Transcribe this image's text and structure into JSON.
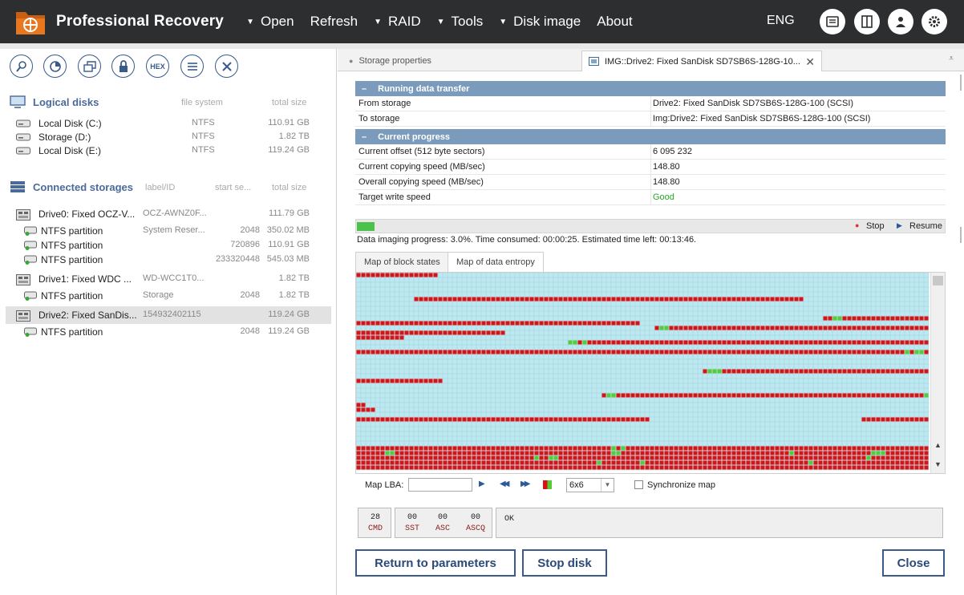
{
  "app": {
    "title": "Professional Recovery",
    "menu": [
      {
        "label": "Open",
        "caret": true
      },
      {
        "label": "Refresh",
        "caret": false
      },
      {
        "label": "RAID",
        "caret": true
      },
      {
        "label": "Tools",
        "caret": true
      },
      {
        "label": "Disk image",
        "caret": true
      },
      {
        "label": "About",
        "caret": false
      }
    ],
    "language": "ENG",
    "top_icons": [
      "messages-icon",
      "panel-toggle-icon",
      "user-icon",
      "settings-gear-icon"
    ]
  },
  "left": {
    "toolbar": [
      "find-icon",
      "scan-icon",
      "copy-icon",
      "lock-icon",
      "hex-icon",
      "list-icon",
      "close-icon"
    ],
    "hex_label": "HEX",
    "logical": {
      "title": "Logical disks",
      "col_fs": "file system",
      "col_size": "total size",
      "items": [
        {
          "name": "Local Disk (C:)",
          "fs": "NTFS",
          "size": "110.91 GB"
        },
        {
          "name": "Storage (D:)",
          "fs": "NTFS",
          "size": "1.82 TB"
        },
        {
          "name": "Local Disk (E:)",
          "fs": "NTFS",
          "size": "119.24 GB"
        }
      ]
    },
    "connected": {
      "title": "Connected storages",
      "col_label": "label/ID",
      "col_start": "start se...",
      "col_size": "total size",
      "items": [
        {
          "name": "Drive0: Fixed OCZ-V...",
          "label": "OCZ-AWNZ0F...",
          "start": "",
          "size": "111.79 GB",
          "level": 0
        },
        {
          "name": "NTFS partition",
          "label": "System Reser...",
          "start": "2048",
          "size": "350.02 MB",
          "level": 1
        },
        {
          "name": "NTFS partition",
          "label": "",
          "start": "720896",
          "size": "110.91 GB",
          "level": 1
        },
        {
          "name": "NTFS partition",
          "label": "",
          "start": "233320448",
          "size": "545.03 MB",
          "level": 1
        },
        {
          "name": "Drive1: Fixed WDC ...",
          "label": "WD-WCC1T0...",
          "start": "",
          "size": "1.82 TB",
          "level": 0
        },
        {
          "name": "NTFS partition",
          "label": "Storage",
          "start": "2048",
          "size": "1.82 TB",
          "level": 1
        },
        {
          "name": "Drive2: Fixed SanDis...",
          "label": "154932402115",
          "start": "",
          "size": "119.24 GB",
          "level": 0,
          "selected": true
        },
        {
          "name": "NTFS partition",
          "label": "",
          "start": "2048",
          "size": "119.24 GB",
          "level": 1
        }
      ]
    }
  },
  "right": {
    "tabs": [
      {
        "label": "Storage properties"
      },
      {
        "label": "IMG::Drive2: Fixed SanDisk SD7SB6S-128G-10..."
      }
    ],
    "transfer": {
      "title": "Running data transfer",
      "rows": [
        {
          "k": "From storage",
          "v": "Drive2: Fixed SanDisk SD7SB6S-128G-100 (SCSI)"
        },
        {
          "k": "To storage",
          "v": "Img:Drive2: Fixed SanDisk SD7SB6S-128G-100 (SCSI)"
        }
      ]
    },
    "progress": {
      "title": "Current progress",
      "rows": [
        {
          "k": "Current offset (512 byte sectors)",
          "v": "6 095 232"
        },
        {
          "k": "Current copying speed (MB/sec)",
          "v": "148.80"
        },
        {
          "k": "Overall copying speed (MB/sec)",
          "v": "148.80"
        },
        {
          "k": "Target write speed",
          "v": "Good"
        }
      ],
      "good_color": "#22aa22"
    },
    "imaging": {
      "fraction": 0.03,
      "stop_label": "Stop",
      "resume_label": "Resume",
      "status_text": "Data imaging progress: 3.0%. Time consumed: 00:00:25. Estimated time left: 00:13:46."
    },
    "map": {
      "tabs": [
        "Map of block states",
        "Map of data entropy"
      ],
      "lba_label": "Map LBA:",
      "lba_value": "",
      "block_size": "6x6",
      "sync_label": "Synchronize map",
      "colors": {
        "empty": "#bde8f0",
        "high": "#dd1111",
        "mid": "#55cc33",
        "grid": "#9fd0dc"
      }
    },
    "status": {
      "cmd_val": "28",
      "cmd_lbl": "CMD",
      "sst_val": "00",
      "sst_lbl": "SST",
      "asc_val": "00",
      "asc_lbl": "ASC",
      "ascq_val": "00",
      "ascq_lbl": "ASCQ",
      "message": "OK"
    },
    "buttons": {
      "return": "Return to parameters",
      "stop_disk": "Stop disk",
      "close": "Close"
    }
  }
}
